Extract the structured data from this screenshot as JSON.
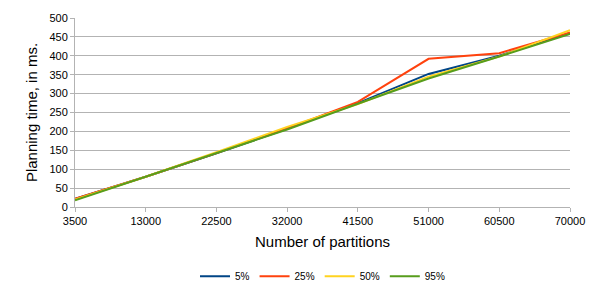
{
  "chart_data": {
    "type": "line",
    "x_label": "Number of partitions",
    "y_label": "Planning time, in ms.",
    "x": [
      3500,
      13000,
      22500,
      32000,
      41500,
      51000,
      60500,
      70000
    ],
    "series": [
      {
        "name": "5%",
        "color": "#004586",
        "values": [
          22,
          80,
          142,
          207,
          275,
          352,
          400,
          460
        ]
      },
      {
        "name": "25%",
        "color": "#ff420e",
        "values": [
          22,
          80,
          143,
          208,
          278,
          392,
          407,
          462
        ]
      },
      {
        "name": "50%",
        "color": "#ffd320",
        "values": [
          20,
          80,
          145,
          212,
          272,
          345,
          398,
          468
        ]
      },
      {
        "name": "95%",
        "color": "#579d1c",
        "values": [
          18,
          80,
          142,
          205,
          273,
          340,
          398,
          458
        ]
      }
    ],
    "xlim": [
      3500,
      70000
    ],
    "xticks": [
      3500,
      13000,
      22500,
      32000,
      41500,
      51000,
      60500,
      70000
    ],
    "ylim": [
      0,
      500
    ],
    "yticks": [
      0,
      50,
      100,
      150,
      200,
      250,
      300,
      350,
      400,
      450,
      500
    ],
    "grid": true,
    "legend": "bottom"
  }
}
